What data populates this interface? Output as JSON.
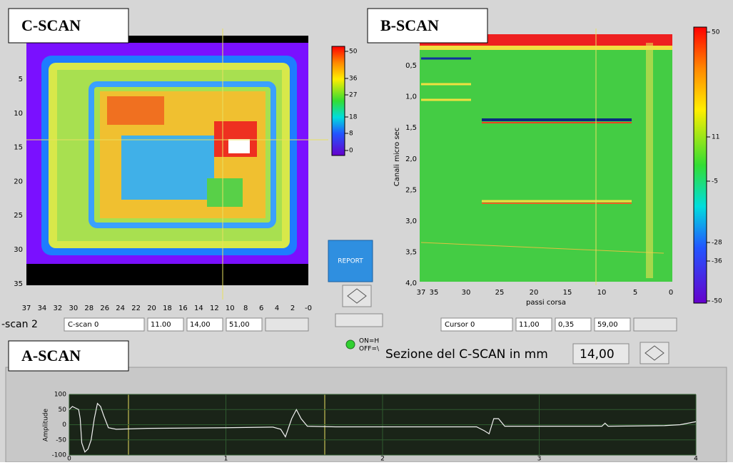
{
  "c_scan": {
    "label": "C-SCAN",
    "x_ticks": [
      "37",
      "34",
      "32",
      "30",
      "28",
      "26",
      "24",
      "22",
      "20",
      "18",
      "16",
      "14",
      "12",
      "10",
      "8",
      "6",
      "4",
      "2",
      "-0"
    ],
    "y_ticks": [
      "5",
      "10",
      "15",
      "20",
      "25",
      "30",
      "35"
    ],
    "colorbar_ticks": [
      "50",
      "36",
      "27",
      "18",
      "8",
      "0"
    ]
  },
  "b_scan": {
    "label": "B-SCAN",
    "y_axis_label": "Canali micro sec",
    "x_axis_label": "passi corsa",
    "y_ticks": [
      "0,5",
      "1,0",
      "1,5",
      "2,0",
      "2,5",
      "3,0",
      "3,5",
      "4,0"
    ],
    "x_ticks": [
      "37",
      "35",
      "30",
      "25",
      "20",
      "15",
      "10",
      "5",
      "0"
    ],
    "colorbar_ticks": [
      "50",
      "11",
      "-5",
      "-28",
      "-36",
      "-50"
    ]
  },
  "controls": {
    "c_scan_tab": "-scan 2",
    "c_scan_cursor": {
      "name": "C-scan 0",
      "x": "11.00",
      "y": "14,00",
      "value": "51,00"
    },
    "b_scan_cursor": {
      "name": "Cursor 0",
      "x": "11,00",
      "y": "0,35",
      "value": "59,00"
    },
    "report_button": "REPORT",
    "toggle": [
      "ON=H",
      "OFF=\\"
    ],
    "section_label": "Sezione del C-SCAN in mm",
    "section_value": "14,00"
  },
  "a_scan": {
    "label": "A-SCAN",
    "y_axis_label": "Amplitude",
    "xlim": [
      0,
      4
    ],
    "ylim": [
      -100,
      100
    ],
    "xticks": [
      0,
      1,
      2,
      3,
      4
    ],
    "yticks": [
      100,
      50,
      0,
      -50,
      -100
    ],
    "x": [
      0,
      0.02,
      0.04,
      0.06,
      0.07,
      0.08,
      0.1,
      0.12,
      0.14,
      0.16,
      0.18,
      0.2,
      0.22,
      0.25,
      0.3,
      0.5,
      1,
      1.3,
      1.35,
      1.38,
      1.42,
      1.45,
      1.48,
      1.52,
      1.7,
      2.6,
      2.65,
      2.68,
      2.71,
      2.74,
      2.78,
      3,
      3.4,
      3.42,
      3.44,
      3.8,
      3.9,
      4
    ],
    "values": [
      50,
      60,
      55,
      50,
      20,
      -60,
      -90,
      -80,
      -50,
      20,
      70,
      60,
      30,
      -10,
      -15,
      -12,
      -10,
      -8,
      -15,
      -40,
      20,
      50,
      20,
      -5,
      -7,
      -7,
      -20,
      -30,
      20,
      20,
      -5,
      -5,
      -5,
      5,
      -5,
      -3,
      0,
      10
    ]
  }
}
